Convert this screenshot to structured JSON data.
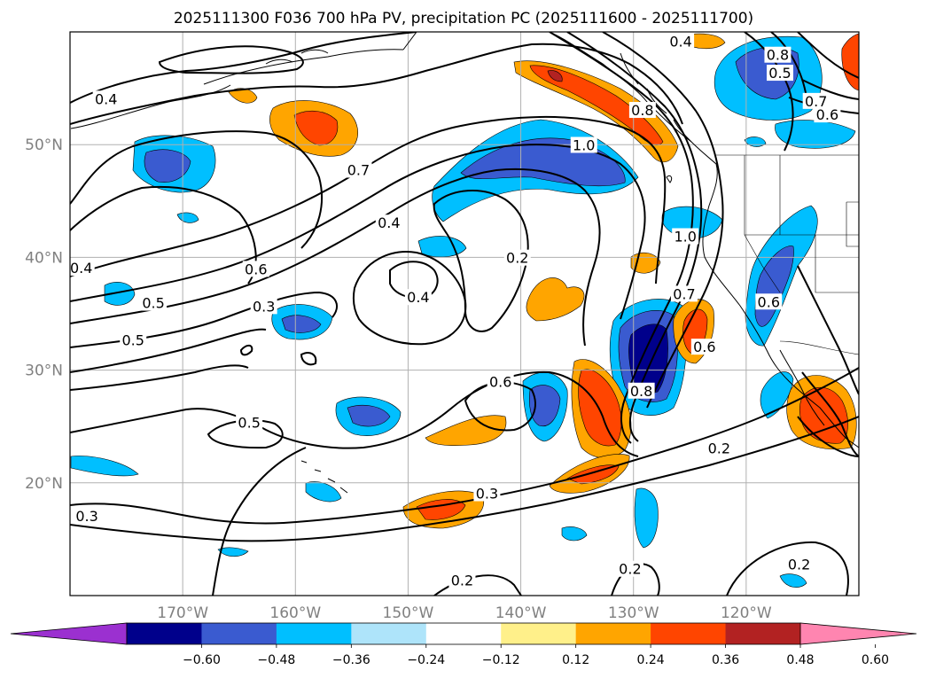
{
  "title": "2025111300 F036 700 hPa PV, precipitation PC (2025111600 - 2025111700)",
  "map": {
    "lon_range": [
      -180,
      -110
    ],
    "lat_range": [
      10,
      60
    ],
    "lon_ticks": [
      {
        "lon": -170,
        "label": "170°W"
      },
      {
        "lon": -160,
        "label": "160°W"
      },
      {
        "lon": -150,
        "label": "150°W"
      },
      {
        "lon": -140,
        "label": "140°W"
      },
      {
        "lon": -130,
        "label": "130°W"
      },
      {
        "lon": -120,
        "label": "120°W"
      }
    ],
    "lat_ticks": [
      {
        "lat": 20,
        "label": "20°N"
      },
      {
        "lat": 30,
        "label": "30°N"
      },
      {
        "lat": 40,
        "label": "40°N"
      },
      {
        "lat": 50,
        "label": "50°N"
      }
    ],
    "grid": true,
    "gridline_color": "#b0b0b0"
  },
  "colorbar": {
    "levels": [
      "−0.60",
      "−0.48",
      "−0.36",
      "−0.24",
      "−0.12",
      "0.12",
      "0.24",
      "0.36",
      "0.48",
      "0.60"
    ],
    "colors": [
      "#9b30d0",
      "#00008b",
      "#3a5bd0",
      "#00bfff",
      "#aee4fa",
      "#ffffff",
      "#fff08a",
      "#ffa500",
      "#ff4500",
      "#b22222",
      "#ff85b0"
    ]
  },
  "contour_labels": [
    {
      "text": "0.4",
      "lon": -176.8,
      "lat": 54.0
    },
    {
      "text": "0.7",
      "lon": -154.4,
      "lat": 47.7
    },
    {
      "text": "0.4",
      "lon": -151.7,
      "lat": 43.0
    },
    {
      "text": "0.6",
      "lon": -163.5,
      "lat": 38.9
    },
    {
      "text": "0.3",
      "lon": -162.8,
      "lat": 35.6
    },
    {
      "text": "0.4",
      "lon": -179.0,
      "lat": 39.0
    },
    {
      "text": "0.5",
      "lon": -172.6,
      "lat": 35.9
    },
    {
      "text": "0.5",
      "lon": -174.4,
      "lat": 32.6
    },
    {
      "text": "0.4",
      "lon": -149.1,
      "lat": 36.4
    },
    {
      "text": "0.2",
      "lon": -140.3,
      "lat": 39.9
    },
    {
      "text": "1.0",
      "lon": -134.4,
      "lat": 49.9
    },
    {
      "text": "0.8",
      "lon": -129.2,
      "lat": 53.0
    },
    {
      "text": "0.4",
      "lon": -125.8,
      "lat": 59.1
    },
    {
      "text": "1.0",
      "lon": -125.4,
      "lat": 41.8
    },
    {
      "text": "0.7",
      "lon": -125.5,
      "lat": 36.7
    },
    {
      "text": "0.6",
      "lon": -141.8,
      "lat": 28.9
    },
    {
      "text": "0.8",
      "lon": -129.3,
      "lat": 28.1
    },
    {
      "text": "0.6",
      "lon": -123.7,
      "lat": 32.0
    },
    {
      "text": "0.5",
      "lon": -164.1,
      "lat": 25.3
    },
    {
      "text": "0.3",
      "lon": -143.0,
      "lat": 19.0
    },
    {
      "text": "0.2",
      "lon": -122.4,
      "lat": 23.0
    },
    {
      "text": "0.2",
      "lon": -145.2,
      "lat": 11.3
    },
    {
      "text": "0.2",
      "lon": -130.3,
      "lat": 12.3
    },
    {
      "text": "0.2",
      "lon": -115.3,
      "lat": 12.7
    },
    {
      "text": "0.3",
      "lon": -178.5,
      "lat": 17.0
    },
    {
      "text": "0.5",
      "lon": -117.0,
      "lat": 56.3
    },
    {
      "text": "0.8",
      "lon": -117.2,
      "lat": 57.9
    },
    {
      "text": "0.7",
      "lon": -113.8,
      "lat": 53.8
    },
    {
      "text": "0.6",
      "lon": -112.8,
      "lat": 52.6
    },
    {
      "text": "0.6",
      "lon": -118.0,
      "lat": 36.0
    }
  ]
}
